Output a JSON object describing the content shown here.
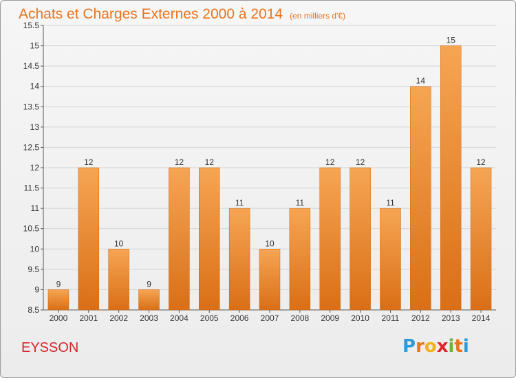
{
  "header": {
    "title": "Achats et Charges Externes 2000 à 2014",
    "subtitle": "(en milliers d'€)"
  },
  "footer": {
    "commune": "EYSSON",
    "logo_letters": [
      "P",
      "r",
      "o",
      "x",
      "i",
      "t",
      "i"
    ],
    "logo_colors": [
      "#2e9bd6",
      "#e8741e",
      "#f2b21b",
      "#d9262c",
      "#6ab43e",
      "#e8741e",
      "#2e9bd6"
    ]
  },
  "colors": {
    "bar_top": "#f6a553",
    "bar_bottom": "#d96f16",
    "title": "#e8741e",
    "commune": "#d9262c"
  },
  "chart_data": {
    "type": "bar",
    "categories": [
      "2000",
      "2001",
      "2002",
      "2003",
      "2004",
      "2005",
      "2006",
      "2007",
      "2008",
      "2009",
      "2010",
      "2011",
      "2012",
      "2013",
      "2014"
    ],
    "values": [
      9,
      12,
      10,
      9,
      12,
      12,
      11,
      10,
      11,
      12,
      12,
      11,
      14,
      15,
      12
    ],
    "data_labels": [
      "9",
      "12",
      "10",
      "9",
      "12",
      "12",
      "11",
      "10",
      "11",
      "12",
      "12",
      "11",
      "14",
      "15",
      "12"
    ],
    "ylim": [
      8.5,
      15.5
    ],
    "yticks": [
      8.5,
      9,
      9.5,
      10,
      10.5,
      11,
      11.5,
      12,
      12.5,
      13,
      13.5,
      14,
      14.5,
      15,
      15.5
    ],
    "ytick_labels": [
      "8.5",
      "9",
      "9.5",
      "10",
      "10.5",
      "11",
      "11.5",
      "12",
      "12.5",
      "13",
      "13.5",
      "14",
      "14.5",
      "15",
      "15.5"
    ],
    "grid": "horizontal"
  }
}
